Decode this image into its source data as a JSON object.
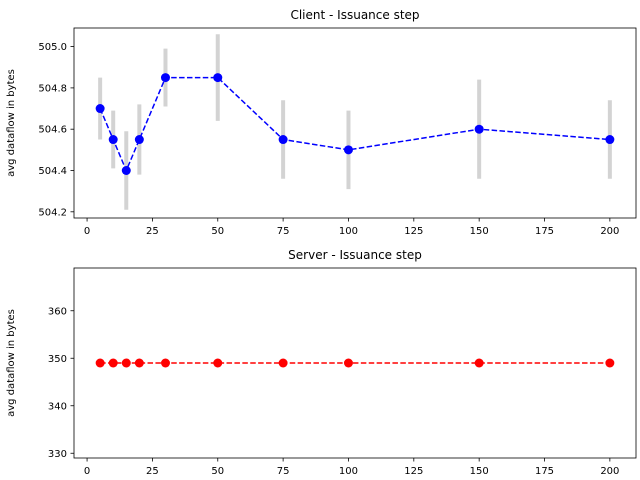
{
  "chart_data": [
    {
      "type": "line",
      "title": "Client - Issuance step",
      "xlabel": "",
      "ylabel": "avg dataflow in bytes",
      "xlim": [
        -5,
        210
      ],
      "ylim": [
        504.17,
        505.09
      ],
      "x_ticks": [
        0,
        25,
        50,
        75,
        100,
        125,
        150,
        175,
        200
      ],
      "y_ticks": [
        504.2,
        504.4,
        504.6,
        504.8,
        505.0
      ],
      "y_tick_labels": [
        "504.2",
        "504.4",
        "504.6",
        "504.8",
        "505.0"
      ],
      "x": [
        5,
        10,
        15,
        20,
        30,
        50,
        75,
        100,
        150,
        200
      ],
      "series": [
        {
          "color": "#0000ff",
          "errorbar_color": "#d3d3d3",
          "values": [
            504.7,
            504.55,
            504.4,
            504.55,
            504.85,
            504.85,
            504.55,
            504.5,
            504.6,
            504.55
          ],
          "error": [
            0.15,
            0.14,
            0.19,
            0.17,
            0.14,
            0.21,
            0.19,
            0.19,
            0.24,
            0.19
          ]
        }
      ]
    },
    {
      "type": "line",
      "title": "Server - Issuance step",
      "xlabel": "",
      "ylabel": "avg dataflow in bytes",
      "xlim": [
        -5,
        210
      ],
      "ylim": [
        329,
        369
      ],
      "x_ticks": [
        0,
        25,
        50,
        75,
        100,
        125,
        150,
        175,
        200
      ],
      "y_ticks": [
        330,
        340,
        350,
        360
      ],
      "y_tick_labels": [
        "330",
        "340",
        "350",
        "360"
      ],
      "x": [
        5,
        10,
        15,
        20,
        30,
        50,
        75,
        100,
        150,
        200
      ],
      "series": [
        {
          "color": "#ff0000",
          "values": [
            349,
            349,
            349,
            349,
            349,
            349,
            349,
            349,
            349,
            349
          ]
        }
      ]
    }
  ]
}
